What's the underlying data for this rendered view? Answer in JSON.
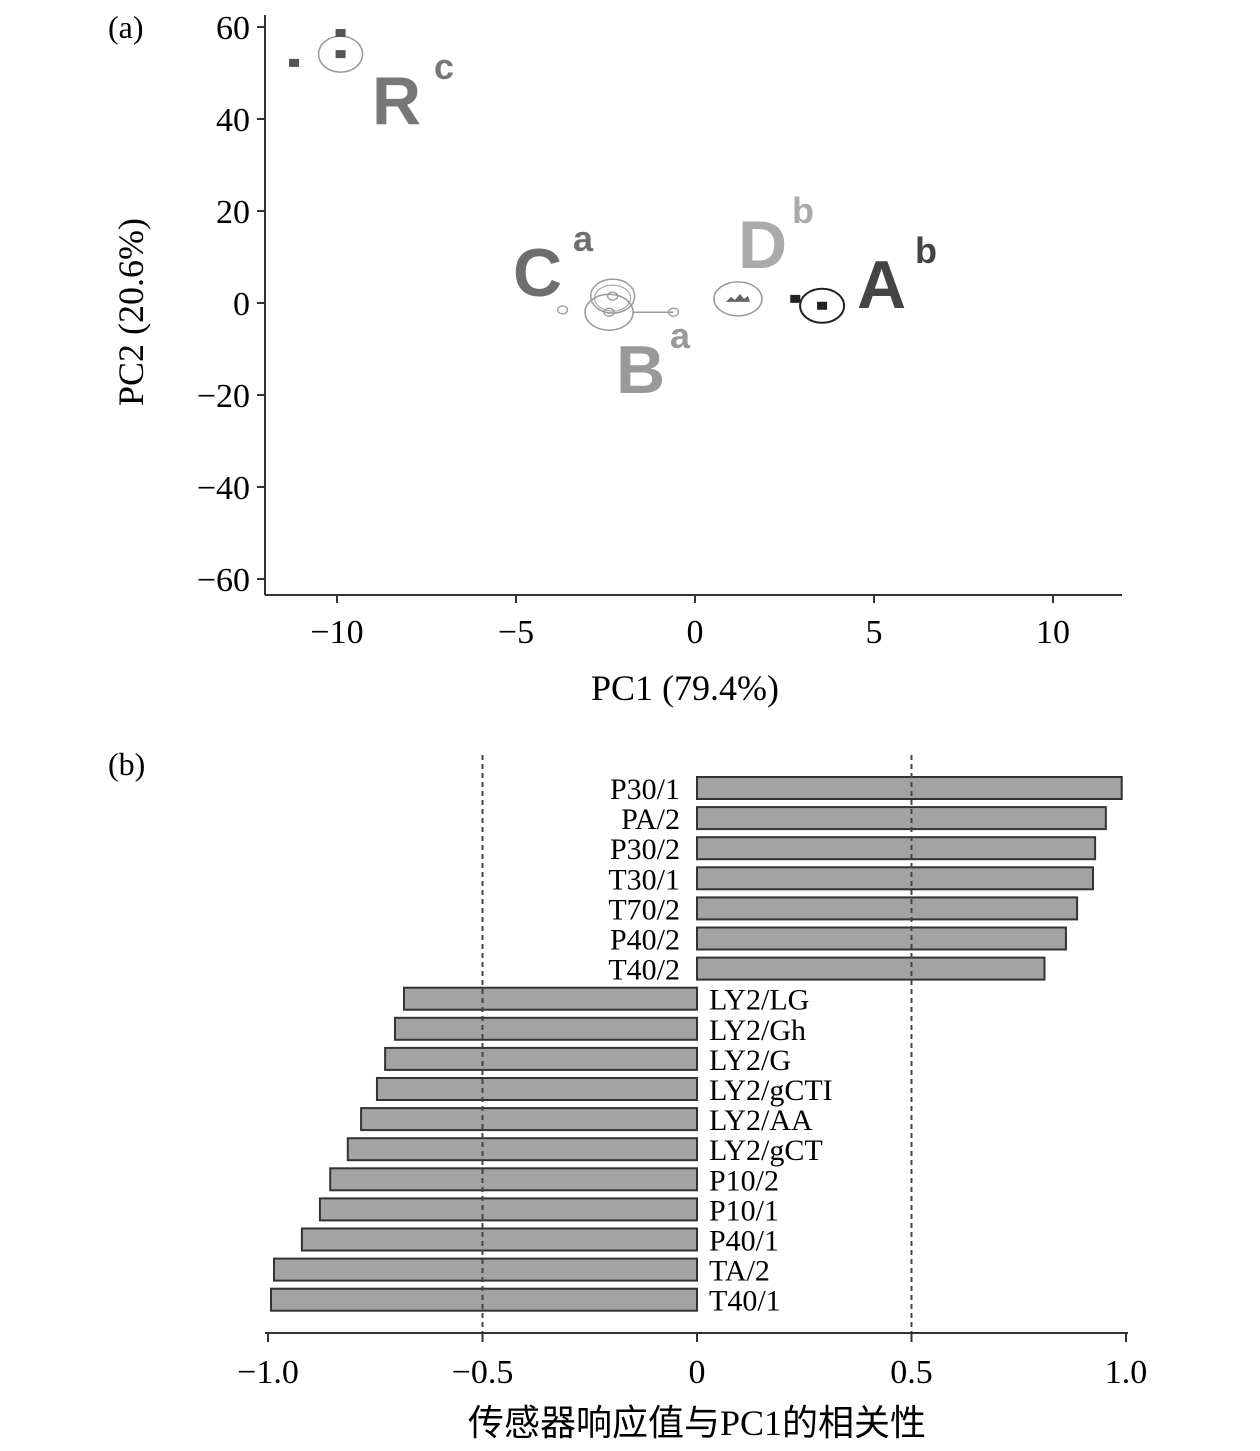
{
  "chart_data": [
    {
      "type": "scatter",
      "panel_label": "(a)",
      "xlabel": "PC1 (79.4%)",
      "ylabel": "PC2 (20.6%)",
      "xlim": [
        -12,
        11.8
      ],
      "ylim": [
        -63,
        63
      ],
      "xticks": [
        -10,
        -5,
        0,
        5,
        10
      ],
      "xtick_labels": [
        "−10",
        "−5",
        "0",
        "5",
        "10"
      ],
      "yticks": [
        60,
        40,
        20,
        0,
        -20,
        -40,
        -60
      ],
      "ytick_labels": [
        "60",
        "40",
        "20",
        "0",
        "−20",
        "−40",
        "−60"
      ],
      "groups": [
        {
          "name": "R",
          "sup": "c",
          "color": "#777777",
          "centroid": [
            -9.9,
            54.1
          ],
          "points": [
            [
              -11.2,
              52.2
            ],
            [
              -9.9,
              58.7
            ]
          ]
        },
        {
          "name": "C",
          "sup": "a",
          "color": "#6e6e6e",
          "centroid": [
            -2.3,
            1.5
          ],
          "points": [
            [
              -3.7,
              -1.5
            ]
          ]
        },
        {
          "name": "B",
          "sup": "a",
          "color": "#999999",
          "centroid": [
            -2.4,
            -2.0
          ],
          "points": [
            [
              -0.6,
              -2.0
            ]
          ]
        },
        {
          "name": "D",
          "sup": "b",
          "color": "#aaaaaa",
          "centroid": [
            1.2,
            0.9
          ],
          "points": []
        },
        {
          "name": "A",
          "sup": "b",
          "color": "#444444",
          "centroid": [
            3.55,
            -0.6
          ],
          "points": [
            [
              2.8,
              0.9
            ]
          ]
        }
      ]
    },
    {
      "type": "bar",
      "orientation": "horizontal",
      "panel_label": "(b)",
      "xlabel": "传感器响应值与PC1的相关性",
      "xlim": [
        -1.0,
        1.0
      ],
      "xticks": [
        -1.0,
        -0.5,
        0,
        0.5,
        1.0
      ],
      "xtick_labels": [
        "−1.0",
        "−0.5",
        "0",
        "0.5",
        "1.0"
      ],
      "reference_lines": [
        -0.5,
        0.5
      ],
      "bar_color": "#a3a3a3",
      "categories": [
        "P30/1",
        "PA/2",
        "P30/2",
        "T30/1",
        "T70/2",
        "P40/2",
        "T40/2",
        "LY2/LG",
        "LY2/Gh",
        "LY2/G",
        "LY2/gCTI",
        "LY2/AA",
        "LY2/gCT",
        "P10/2",
        "P10/1",
        "P40/1",
        "TA/2",
        "T40/1"
      ],
      "values": [
        0.99,
        0.953,
        0.928,
        0.923,
        0.886,
        0.86,
        0.81,
        -0.683,
        -0.704,
        -0.727,
        -0.746,
        -0.783,
        -0.814,
        -0.855,
        -0.879,
        -0.921,
        -0.986,
        -0.993
      ]
    }
  ]
}
